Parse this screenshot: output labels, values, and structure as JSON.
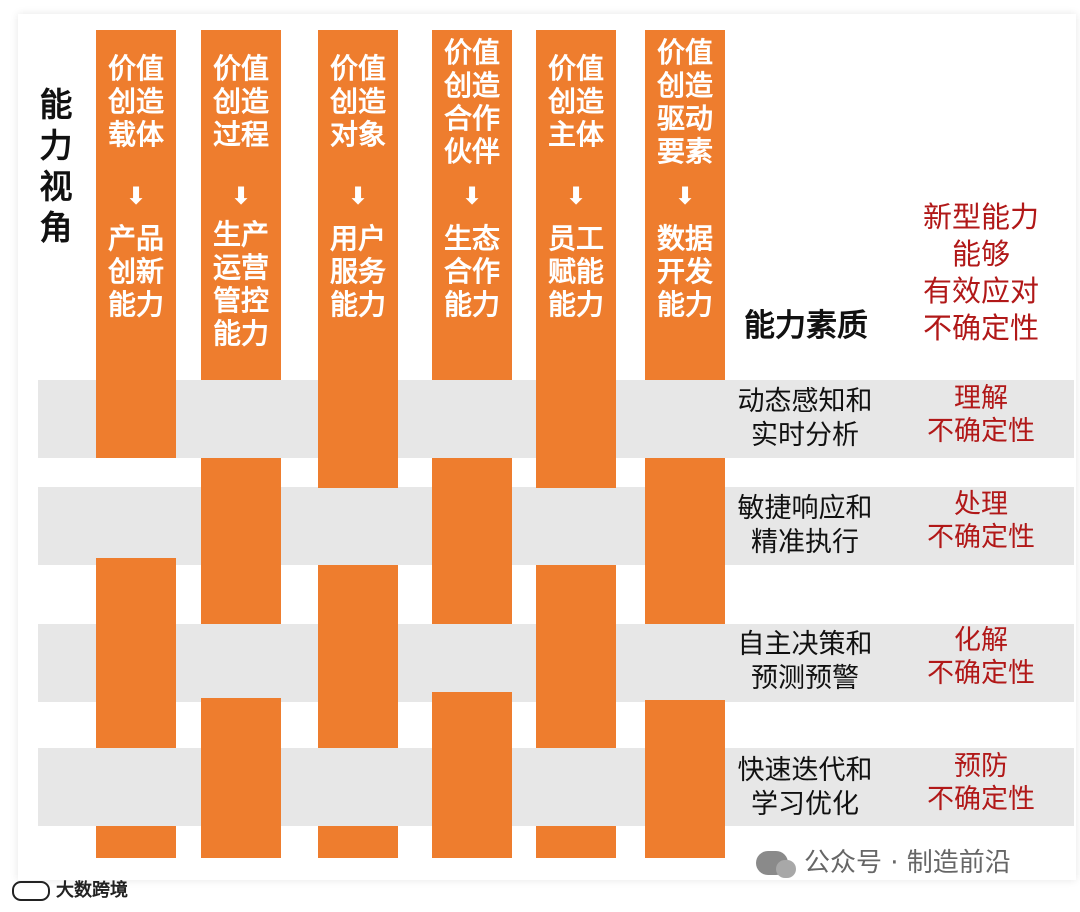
{
  "lens_label": "能\n力\n视\n角",
  "quality_title": "能力素质",
  "headline": "新型能力\n能够\n有效应对\n不确定性",
  "columns": [
    {
      "top": "价值\n创造\n载体",
      "bottom": "产品\n创新\n能力"
    },
    {
      "top": "价值\n创造\n过程",
      "bottom": "生产\n运营\n管控\n能力"
    },
    {
      "top": "价值\n创造\n对象",
      "bottom": "用户\n服务\n能力"
    },
    {
      "top": "价值\n创造\n合作\n伙伴",
      "bottom": "生态\n合作\n能力"
    },
    {
      "top": "价值\n创造\n主体",
      "bottom": "员工\n赋能\n能力"
    },
    {
      "top": "价值\n创造\n驱动\n要素",
      "bottom": "数据\n开发\n能力"
    }
  ],
  "arrow_glyph": "⬇",
  "rows": [
    {
      "label": "动态感知和\n实时分析",
      "effect": "理解\n不确定性"
    },
    {
      "label": "敏捷响应和\n精准执行",
      "effect": "处理\n不确定性"
    },
    {
      "label": "自主决策和\n预测预警",
      "effect": "化解\n不确定性"
    },
    {
      "label": "快速迭代和\n学习优化",
      "effect": "预防\n不确定性"
    }
  ],
  "watermark": "公众号 · 制造前沿",
  "source": "大数跨境",
  "colors": {
    "column": "#ee7d2e",
    "band": "#e7e7e7",
    "effect_text": "#b11818"
  }
}
